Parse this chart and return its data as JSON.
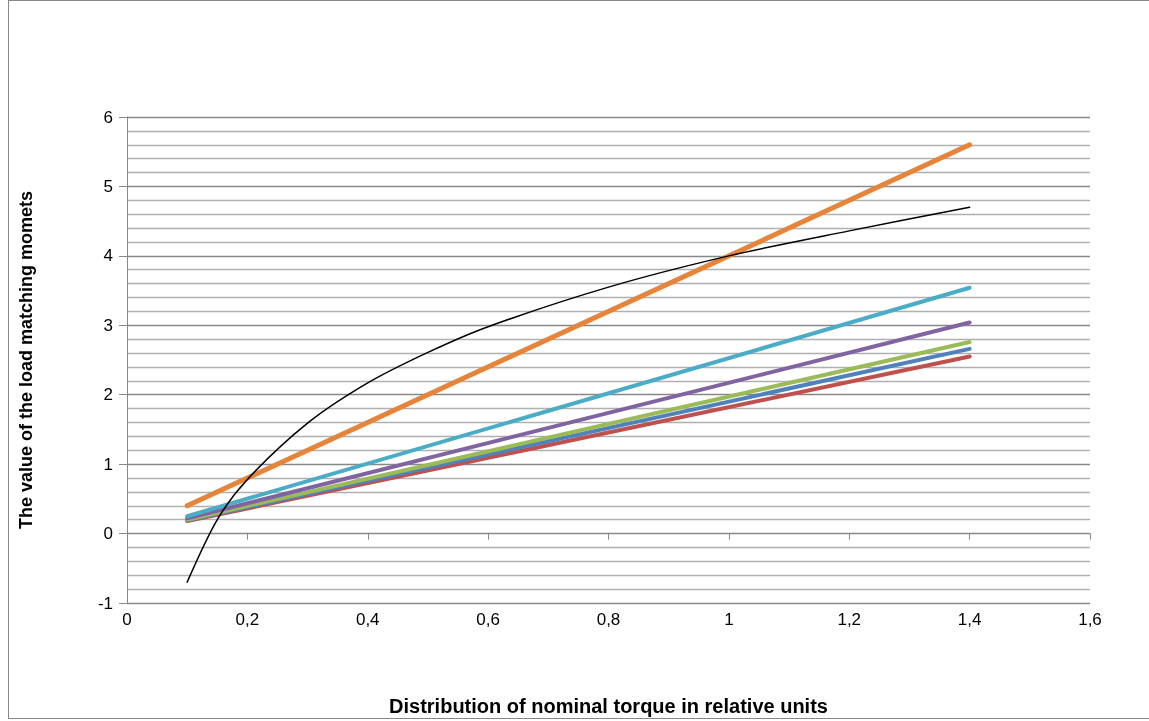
{
  "chart_data": {
    "type": "line",
    "xlabel": "Distribution of nominal torque in relative units",
    "ylabel": "The value of the load matching momets",
    "xlim": [
      0,
      1.6
    ],
    "xticks": [
      0,
      {
        "value": 0.2,
        "label": "0,2"
      },
      {
        "value": 0.4,
        "label": "0,4"
      },
      {
        "value": 0.6,
        "label": "0,6"
      },
      {
        "value": 0.8,
        "label": "0,8"
      },
      1,
      {
        "value": 1.2,
        "label": "1,2"
      },
      {
        "value": 1.4,
        "label": "1,4"
      },
      {
        "value": 1.6,
        "label": "1,6"
      }
    ],
    "ylim": [
      -1,
      6
    ],
    "yticks": [
      -1,
      0,
      1,
      2,
      3,
      4,
      5,
      6
    ],
    "grid": "y",
    "marker": "none",
    "line_style": "solid",
    "x": [
      0.1,
      1.4
    ],
    "series": [
      {
        "color": "#c0504d",
        "values": [
          0.18,
          2.55
        ]
      },
      {
        "color": "#4f81bd",
        "values": [
          0.19,
          2.66
        ]
      },
      {
        "color": "#9bbb59",
        "values": [
          0.2,
          2.76
        ]
      },
      {
        "color": "#8064a2",
        "values": [
          0.22,
          3.04
        ]
      },
      {
        "color": "#4bacc6",
        "values": [
          0.25,
          3.54
        ]
      },
      {
        "color": "#e6843a",
        "values": [
          0.4,
          5.6
        ]
      },
      {
        "color": "#000000",
        "x": [
          0.1,
          0.15,
          0.2,
          0.3,
          0.4,
          0.5,
          0.6,
          0.8,
          1.0,
          1.2,
          1.4
        ],
        "values": [
          -0.7,
          0.2,
          0.78,
          1.59,
          2.17,
          2.61,
          2.98,
          3.55,
          4.0,
          4.36,
          4.7
        ]
      }
    ]
  }
}
